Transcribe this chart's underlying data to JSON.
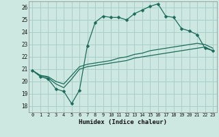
{
  "xlabel": "Humidex (Indice chaleur)",
  "bg_color": "#cde8e0",
  "grid_color": "#aacfc8",
  "line_color": "#1a6b5a",
  "xlim": [
    -0.5,
    23.5
  ],
  "ylim": [
    17.5,
    26.5
  ],
  "xticks": [
    0,
    1,
    2,
    3,
    4,
    5,
    6,
    7,
    8,
    9,
    10,
    11,
    12,
    13,
    14,
    15,
    16,
    17,
    18,
    19,
    20,
    21,
    22,
    23
  ],
  "yticks": [
    18,
    19,
    20,
    21,
    22,
    23,
    24,
    25,
    26
  ],
  "line1_x": [
    0,
    1,
    2,
    3,
    4,
    5,
    6,
    7,
    8,
    9,
    10,
    11,
    12,
    13,
    14,
    15,
    16,
    17,
    18,
    19,
    20,
    21,
    22,
    23
  ],
  "line1_y": [
    20.9,
    20.4,
    20.2,
    19.4,
    19.2,
    18.2,
    19.3,
    22.9,
    24.8,
    25.3,
    25.2,
    25.2,
    25.0,
    25.5,
    25.8,
    26.1,
    26.3,
    25.3,
    25.2,
    24.3,
    24.1,
    23.8,
    22.7,
    22.5
  ],
  "line2_x": [
    0,
    1,
    2,
    3,
    4,
    5,
    6,
    7,
    8,
    9,
    10,
    11,
    12,
    13,
    14,
    15,
    16,
    17,
    18,
    19,
    20,
    21,
    22,
    23
  ],
  "line2_y": [
    20.9,
    20.5,
    20.3,
    19.8,
    19.5,
    20.2,
    21.0,
    21.2,
    21.3,
    21.4,
    21.5,
    21.6,
    21.7,
    21.9,
    22.0,
    22.1,
    22.2,
    22.3,
    22.4,
    22.5,
    22.6,
    22.7,
    22.8,
    22.5
  ],
  "line3_x": [
    0,
    1,
    2,
    3,
    4,
    5,
    6,
    7,
    8,
    9,
    10,
    11,
    12,
    13,
    14,
    15,
    16,
    17,
    18,
    19,
    20,
    21,
    22,
    23
  ],
  "line3_y": [
    20.9,
    20.5,
    20.4,
    20.0,
    19.8,
    20.5,
    21.2,
    21.4,
    21.5,
    21.6,
    21.7,
    21.9,
    22.0,
    22.2,
    22.3,
    22.5,
    22.6,
    22.7,
    22.8,
    22.9,
    23.0,
    23.1,
    23.0,
    22.7
  ]
}
